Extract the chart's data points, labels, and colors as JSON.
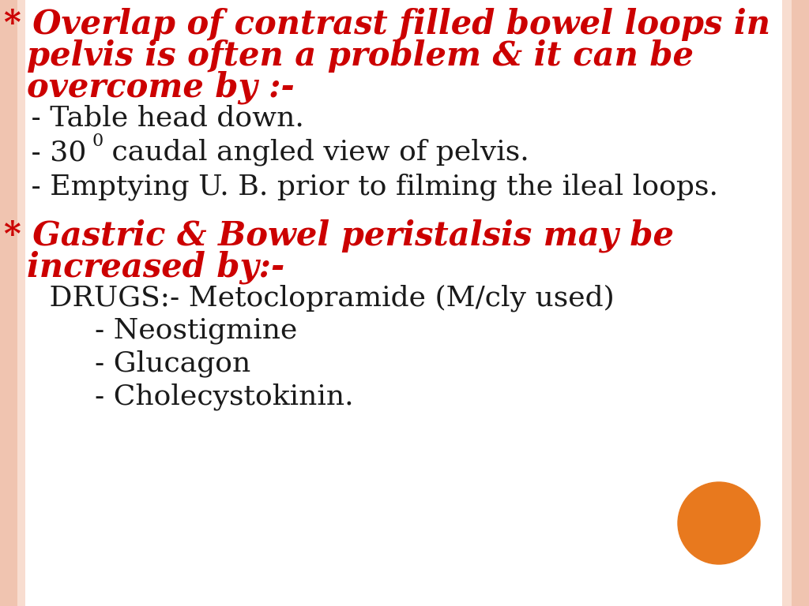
{
  "bg_color": "#ffffff",
  "border_color_outer": "#f0c4b0",
  "border_color_inner": "#f8ddd0",
  "red_color": "#cc0000",
  "black_color": "#1a1a1a",
  "heading1_line1": "* Overlap of contrast filled bowel loops in",
  "heading1_line2": "  pelvis is often a problem & it can be",
  "heading1_line3": "  overcome by :-",
  "bullet1_1": "   - Table head down.",
  "bullet1_2_pre": "   - 30",
  "bullet1_2_sup": "0",
  "bullet1_2_post": " caudal angled view of pelvis.",
  "bullet1_3": "   - Emptying U. B. prior to filming the ileal loops.",
  "heading2_line1": "* Gastric & Bowel peristalsis may be",
  "heading2_line2": "  increased by:-",
  "drugs_line": "     DRUGS:- Metoclopramide (M/cly used)",
  "drug1": "          - Neostigmine",
  "drug2": "          - Glucagon",
  "drug3": "          - Cholecystokinin.",
  "circle_color": "#e8791e",
  "heading_fontsize": 30,
  "bullet_fontsize": 26,
  "drugs_fontsize": 26
}
